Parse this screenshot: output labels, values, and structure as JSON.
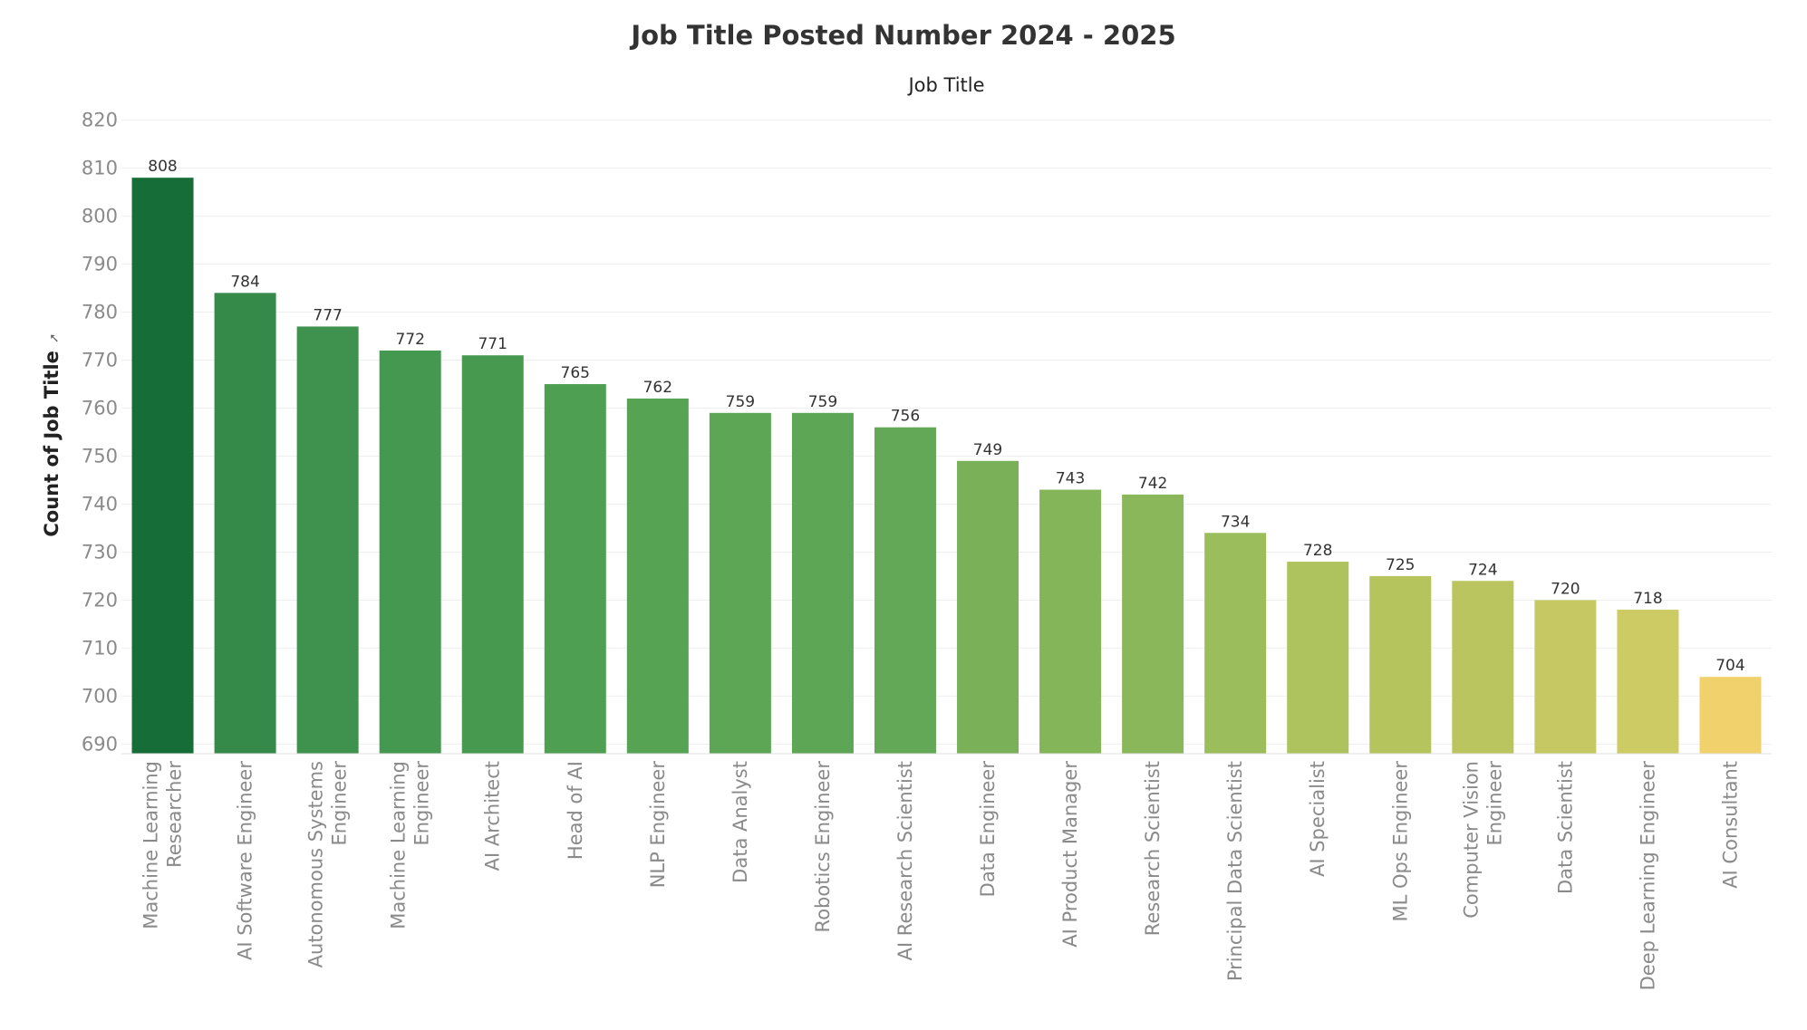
{
  "title": "Job Title Posted Number 2024 - 2025",
  "x_header": "Job Title",
  "y_axis_title": "Count of Job Title",
  "y_axis_sort_icon": "sort-descending-icon",
  "chart_data": {
    "type": "bar",
    "title": "Job Title Posted Number 2024 - 2025",
    "xlabel": "Job Title",
    "ylabel": "Count of Job Title",
    "ylim": [
      688,
      822
    ],
    "yticks": [
      690,
      700,
      710,
      720,
      730,
      740,
      750,
      760,
      770,
      780,
      790,
      800,
      810,
      820
    ],
    "grid": "horizontal",
    "categories": [
      "Machine Learning Researcher",
      "AI Software Engineer",
      "Autonomous Systems Engineer",
      "Machine Learning Engineer",
      "AI Architect",
      "Head of AI",
      "NLP Engineer",
      "Data Analyst",
      "Robotics Engineer",
      "AI Research Scientist",
      "Data Engineer",
      "AI Product Manager",
      "Research Scientist",
      "Principal Data Scientist",
      "AI Specialist",
      "ML Ops Engineer",
      "Computer Vision Engineer",
      "Data Scientist",
      "Deep Learning Engineer",
      "AI Consultant"
    ],
    "category_lines": [
      [
        "Machine Learning",
        "Researcher"
      ],
      [
        "AI Software Engineer"
      ],
      [
        "Autonomous Systems",
        "Engineer"
      ],
      [
        "Machine Learning",
        "Engineer"
      ],
      [
        "AI Architect"
      ],
      [
        "Head of AI"
      ],
      [
        "NLP Engineer"
      ],
      [
        "Data Analyst"
      ],
      [
        "Robotics Engineer"
      ],
      [
        "AI Research Scientist"
      ],
      [
        "Data Engineer"
      ],
      [
        "AI Product Manager"
      ],
      [
        "Research Scientist"
      ],
      [
        "Principal Data Scientist"
      ],
      [
        "AI Specialist"
      ],
      [
        "ML Ops Engineer"
      ],
      [
        "Computer Vision",
        "Engineer"
      ],
      [
        "Data Scientist"
      ],
      [
        "Deep Learning Engineer"
      ],
      [
        "AI Consultant"
      ]
    ],
    "values": [
      808,
      784,
      777,
      772,
      771,
      765,
      762,
      759,
      759,
      756,
      749,
      743,
      742,
      734,
      728,
      725,
      724,
      720,
      718,
      704
    ],
    "colors": [
      "#166d37",
      "#358a4a",
      "#3e924d",
      "#45984f",
      "#479950",
      "#4f9f52",
      "#56a354",
      "#5ca655",
      "#5ca655",
      "#63a856",
      "#79b058",
      "#84b558",
      "#89b759",
      "#9cbd5b",
      "#aec25d",
      "#b6c45e",
      "#bbc55f",
      "#c6c963",
      "#cccb64",
      "#f1d16b"
    ]
  }
}
